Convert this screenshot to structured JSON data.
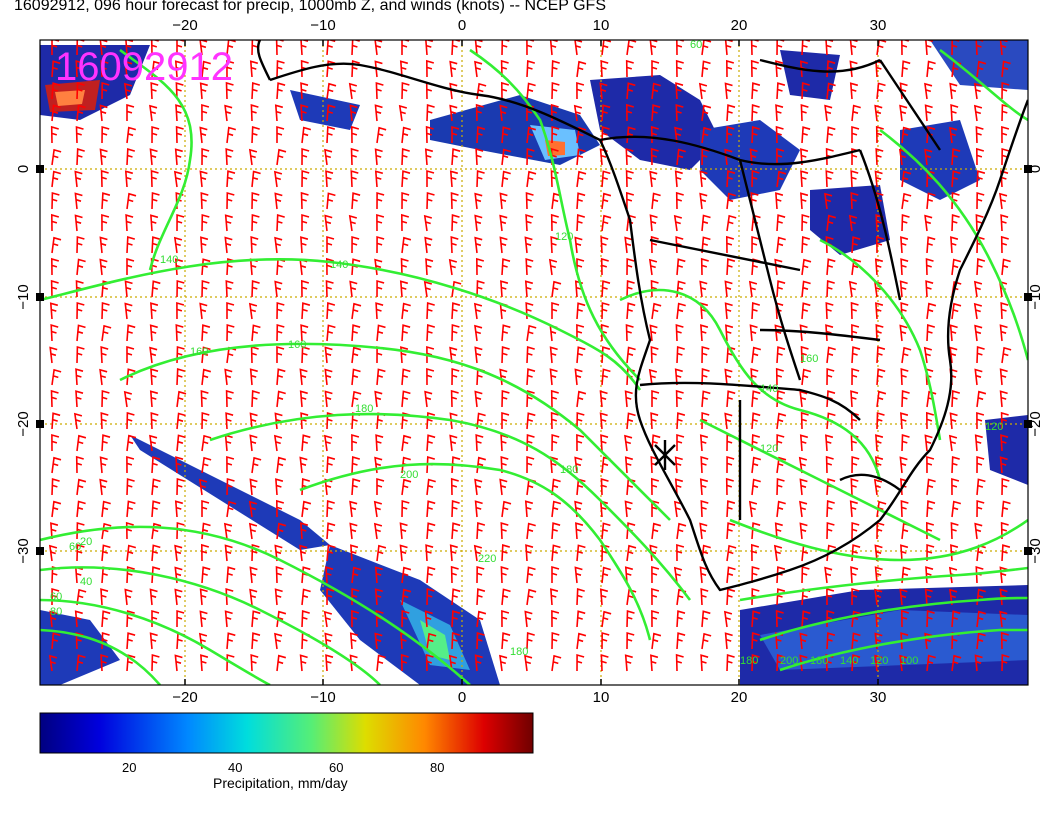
{
  "title": "16092912, 096 hour forecast for precip, 1000mb Z, and winds (knots) -- NCEP GFS",
  "datestamp": "16092912",
  "axes": {
    "lon_ticks": [
      "−20",
      "−10",
      "0",
      "10",
      "20",
      "30"
    ],
    "lat_ticks": [
      "0",
      "−10",
      "−20",
      "−30"
    ]
  },
  "contour_labels": [
    "60",
    "120",
    "140",
    "140",
    "160",
    "160",
    "180",
    "180",
    "200",
    "220",
    "180",
    "60",
    "120",
    "140",
    "120",
    "160",
    "180",
    "200",
    "180",
    "140",
    "120",
    "100",
    "80",
    "60",
    "40",
    "20"
  ],
  "colorbar": {
    "label": "Precipitation, mm/day",
    "ticks": [
      "20",
      "40",
      "60",
      "80"
    ]
  },
  "colors": {
    "wind_barbs": "#ff0000",
    "contours": "#33ee33",
    "coastlines": "#000000",
    "grid": "#ccaa00",
    "stamp": "#ff33ff"
  }
}
